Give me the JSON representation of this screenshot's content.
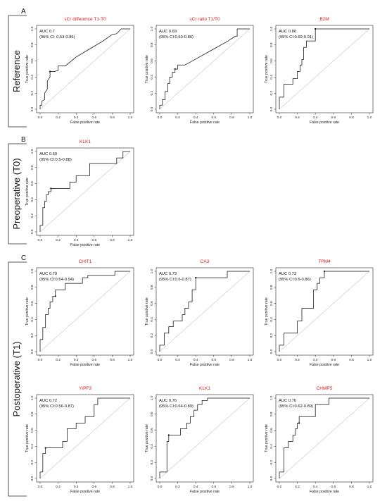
{
  "groups": [
    {
      "letter": "A",
      "label": "Reference"
    },
    {
      "letter": "B",
      "label": "Preoperative (T0)"
    },
    {
      "letter": "C",
      "label": "Postoperative (T1)"
    }
  ],
  "axes": {
    "xlabel": "False positive rate",
    "ylabel": "True positive rate",
    "ticks": [
      "0.0",
      "0.2",
      "0.4",
      "0.6",
      "0.8",
      "1.0"
    ],
    "diagonal_color": "#9a9a9a",
    "title_color": "#e0161b"
  },
  "chart_data": [
    {
      "type": "line",
      "group": "A",
      "title": "sCr difference T1-T0",
      "auc": "AUC 0.7",
      "ci": "(95% CI: 0.53-0.86)",
      "xlabel": "False positive rate",
      "ylabel": "True positive rate",
      "xlim": [
        0,
        1
      ],
      "ylim": [
        0,
        1
      ],
      "x": [
        0,
        0,
        0.02,
        0.02,
        0.05,
        0.05,
        0.08,
        0.08,
        0.11,
        0.11,
        0.17,
        0.18,
        0.2,
        0.2,
        0.28,
        0.4,
        0.55,
        0.7,
        0.8,
        0.85,
        0.9,
        0.9,
        1.0
      ],
      "y": [
        0,
        0.05,
        0.05,
        0.1,
        0.12,
        0.2,
        0.25,
        0.35,
        0.4,
        0.47,
        0.47,
        0.48,
        0.48,
        0.54,
        0.54,
        0.65,
        0.75,
        0.85,
        0.93,
        0.94,
        1.0,
        1.0,
        1.0
      ],
      "marker": [
        0.11,
        0.47
      ]
    },
    {
      "type": "line",
      "group": "A",
      "title": "sCr ratio T1/T0",
      "auc": "AUC 0.69",
      "ci": "(95% CI:0.53-0.86)",
      "xlabel": "False positive rate",
      "ylabel": "True positive rate",
      "xlim": [
        0,
        1
      ],
      "ylim": [
        0,
        1
      ],
      "x": [
        0,
        0,
        0.03,
        0.03,
        0.06,
        0.06,
        0.09,
        0.09,
        0.11,
        0.11,
        0.14,
        0.14,
        0.17,
        0.17,
        0.2,
        0.2,
        0.28,
        0.44,
        0.6,
        0.76,
        0.84,
        0.86,
        0.86,
        1.0
      ],
      "y": [
        0,
        0.05,
        0.05,
        0.12,
        0.12,
        0.22,
        0.22,
        0.32,
        0.32,
        0.4,
        0.4,
        0.46,
        0.46,
        0.5,
        0.5,
        0.55,
        0.55,
        0.65,
        0.75,
        0.85,
        0.91,
        0.91,
        1.0,
        1.0
      ],
      "marker": [
        0.17,
        0.5
      ]
    },
    {
      "type": "line",
      "group": "A",
      "title": "B2M",
      "auc": "AUC 0.80",
      "ci": "(95% CI:0.69-0.91)",
      "xlabel": "False positive rate",
      "ylabel": "True positive rate",
      "xlim": [
        0,
        1
      ],
      "ylim": [
        0,
        1
      ],
      "x": [
        0,
        0,
        0.05,
        0.05,
        0.15,
        0.15,
        0.2,
        0.2,
        0.23,
        0.23,
        0.25,
        0.25,
        0.27,
        0.27,
        0.3,
        0.3,
        0.4,
        0.4,
        1.0
      ],
      "y": [
        0,
        0.15,
        0.15,
        0.31,
        0.31,
        0.38,
        0.38,
        0.47,
        0.47,
        0.55,
        0.55,
        0.62,
        0.62,
        0.77,
        0.77,
        0.85,
        0.85,
        1.0,
        1.0
      ],
      "marker": [
        0.4,
        1.0
      ]
    },
    {
      "type": "line",
      "group": "B",
      "title": "KLK1",
      "auc": "AUC 0.69",
      "ci": "(95% CI:0.5-0.88)",
      "xlabel": "False positive rate",
      "ylabel": "True positive rate",
      "xlim": [
        0,
        1
      ],
      "ylim": [
        0,
        1
      ],
      "x": [
        0,
        0,
        0.03,
        0.03,
        0.05,
        0.05,
        0.07,
        0.07,
        0.09,
        0.09,
        0.12,
        0.12,
        0.33,
        0.33,
        0.4,
        0.4,
        0.55,
        0.55,
        0.85,
        0.85,
        0.92,
        0.92,
        1.0
      ],
      "y": [
        0,
        0.08,
        0.08,
        0.3,
        0.3,
        0.38,
        0.38,
        0.46,
        0.46,
        0.5,
        0.5,
        0.54,
        0.54,
        0.62,
        0.62,
        0.7,
        0.7,
        0.85,
        0.85,
        0.92,
        0.92,
        1.0,
        1.0
      ],
      "marker": [
        0.12,
        0.54
      ]
    },
    {
      "type": "line",
      "group": "C",
      "title": "CHIT1",
      "auc": "AUC 0.79",
      "ci": "(95% CI:0.64-0.94)",
      "xlabel": "False positive rate",
      "ylabel": "True positive rate",
      "xlim": [
        0,
        1
      ],
      "ylim": [
        0,
        1
      ],
      "x": [
        0,
        0,
        0.03,
        0.03,
        0.06,
        0.06,
        0.09,
        0.09,
        0.11,
        0.11,
        0.14,
        0.14,
        0.17,
        0.17,
        0.28,
        0.28,
        0.47,
        0.47,
        0.53,
        0.53,
        0.83,
        0.83,
        1.0
      ],
      "y": [
        0,
        0.15,
        0.15,
        0.3,
        0.3,
        0.46,
        0.46,
        0.54,
        0.54,
        0.62,
        0.62,
        0.69,
        0.69,
        0.77,
        0.77,
        0.85,
        0.85,
        0.92,
        0.92,
        0.95,
        0.95,
        1.0,
        1.0
      ],
      "marker": [
        0.17,
        0.69
      ]
    },
    {
      "type": "line",
      "group": "C",
      "title": "CA3",
      "auc": "AUC 0.73",
      "ci": "(95% CI:0.6-0.87)",
      "xlabel": "False positive rate",
      "ylabel": "True positive rate",
      "xlim": [
        0,
        1
      ],
      "ylim": [
        0,
        1
      ],
      "x": [
        0,
        0,
        0.05,
        0.05,
        0.1,
        0.1,
        0.15,
        0.15,
        0.25,
        0.25,
        0.28,
        0.28,
        0.32,
        0.32,
        0.36,
        0.36,
        0.4,
        0.4,
        0.75,
        0.75,
        1.0
      ],
      "y": [
        0,
        0.08,
        0.08,
        0.23,
        0.23,
        0.31,
        0.31,
        0.38,
        0.38,
        0.46,
        0.46,
        0.54,
        0.54,
        0.62,
        0.62,
        0.77,
        0.77,
        0.92,
        0.92,
        1.0,
        1.0
      ],
      "marker": [
        0.4,
        0.92
      ]
    },
    {
      "type": "line",
      "group": "C",
      "title": "TPM4",
      "auc": "AUC 0.73",
      "ci": "(95% CI:0.6-0.86)",
      "xlabel": "False positive rate",
      "ylabel": "True positive rate",
      "xlim": [
        0,
        1
      ],
      "ylim": [
        0,
        1
      ],
      "x": [
        0,
        0,
        0.05,
        0.05,
        0.2,
        0.2,
        0.25,
        0.25,
        0.38,
        0.38,
        0.42,
        0.42,
        0.45,
        0.45,
        0.5,
        0.5,
        1.0
      ],
      "y": [
        0,
        0.08,
        0.08,
        0.23,
        0.23,
        0.38,
        0.38,
        0.54,
        0.54,
        0.77,
        0.77,
        0.85,
        0.85,
        0.92,
        0.92,
        1.0,
        1.0
      ],
      "marker": [
        0.5,
        1.0
      ]
    },
    {
      "type": "line",
      "group": "C",
      "title": "YIPF3",
      "auc": "AUC 0.72",
      "ci": "(95% CI:0.56-0.87)",
      "xlabel": "False positive rate",
      "ylabel": "True positive rate",
      "xlim": [
        0,
        1
      ],
      "ylim": [
        0,
        1
      ],
      "x": [
        0,
        0,
        0.03,
        0.03,
        0.06,
        0.06,
        0.25,
        0.25,
        0.3,
        0.3,
        0.4,
        0.4,
        0.5,
        0.5,
        0.6,
        0.6,
        0.64,
        0.64,
        1.0
      ],
      "y": [
        0,
        0.08,
        0.08,
        0.31,
        0.31,
        0.38,
        0.38,
        0.46,
        0.46,
        0.62,
        0.62,
        0.69,
        0.69,
        0.77,
        0.77,
        0.92,
        0.92,
        1.0,
        1.0
      ],
      "marker": [
        0.06,
        0.38
      ]
    },
    {
      "type": "line",
      "group": "C",
      "title": "KLK1",
      "auc": "AUC 0.76",
      "ci": "(95% CI:0.64-0.89)",
      "xlabel": "False positive rate",
      "ylabel": "True positive rate",
      "xlim": [
        0,
        1
      ],
      "ylim": [
        0,
        1
      ],
      "x": [
        0,
        0,
        0.08,
        0.08,
        0.1,
        0.1,
        0.23,
        0.23,
        0.3,
        0.3,
        0.34,
        0.34,
        0.38,
        0.38,
        0.42,
        0.42,
        0.47,
        0.47,
        0.53,
        0.53,
        1.0
      ],
      "y": [
        0,
        0.08,
        0.08,
        0.46,
        0.46,
        0.54,
        0.54,
        0.62,
        0.62,
        0.69,
        0.69,
        0.77,
        0.77,
        0.85,
        0.85,
        0.92,
        0.92,
        0.97,
        0.97,
        1.0,
        1.0
      ],
      "marker": [
        0.1,
        0.54
      ]
    },
    {
      "type": "line",
      "group": "C",
      "title": "CHMP5",
      "auc": "AUC 0.76",
      "ci": "(95% CI:0.62-0.89)",
      "xlabel": "False positive rate",
      "ylabel": "True positive rate",
      "xlim": [
        0,
        1
      ],
      "ylim": [
        0,
        1
      ],
      "x": [
        0,
        0,
        0.05,
        0.05,
        0.1,
        0.1,
        0.15,
        0.15,
        0.18,
        0.18,
        0.2,
        0.2,
        0.22,
        0.22,
        0.4,
        0.4,
        0.55,
        0.55,
        1.0
      ],
      "y": [
        0,
        0.08,
        0.08,
        0.38,
        0.38,
        0.46,
        0.46,
        0.54,
        0.54,
        0.62,
        0.62,
        0.69,
        0.69,
        0.77,
        0.77,
        0.92,
        0.92,
        1.0,
        1.0
      ],
      "marker": [
        0.22,
        0.69
      ]
    }
  ]
}
